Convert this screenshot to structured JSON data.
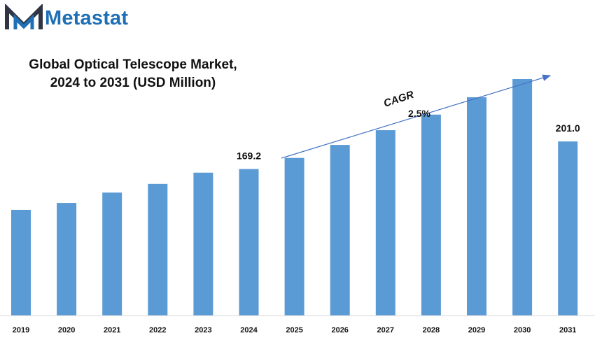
{
  "brand": {
    "name": "Metastat",
    "icon": "metastat-m-logo-icon",
    "color": "#1f6fb5"
  },
  "chart_data": {
    "type": "bar",
    "title_line1": "Global Optical Telescope Market,",
    "title_line2": "2024 to 2031 (USD Million)",
    "categories": [
      "2019",
      "2020",
      "2021",
      "2022",
      "2023",
      "2024",
      "2025",
      "2026",
      "2027",
      "2028",
      "2029",
      "2030",
      "2031"
    ],
    "values": [
      122,
      130,
      142,
      152,
      165,
      169.2,
      182,
      197,
      214,
      232,
      252,
      273,
      201.0
    ],
    "labels": [
      {
        "index": 5,
        "text": "169.2"
      },
      {
        "index": 12,
        "text": "201.0"
      }
    ],
    "annotation": {
      "line1": "CAGR",
      "line2": "2.5%"
    },
    "bar_color": "#5b9bd5",
    "grid": false,
    "legend": "none"
  }
}
